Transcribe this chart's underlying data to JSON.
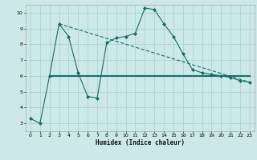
{
  "xlabel": "Humidex (Indice chaleur)",
  "bg_color": "#cce8e8",
  "grid_color": "#aad4d4",
  "line1_x": [
    0,
    1,
    2,
    3,
    4,
    5,
    6,
    7,
    8,
    9,
    10,
    11,
    12,
    13,
    14,
    15,
    16,
    17,
    18,
    19,
    20,
    21,
    22,
    23
  ],
  "line1_y": [
    3.3,
    3.0,
    6.0,
    9.3,
    8.5,
    6.2,
    4.7,
    4.6,
    8.1,
    8.4,
    8.5,
    8.7,
    10.3,
    10.2,
    9.3,
    8.5,
    7.4,
    6.4,
    6.2,
    6.1,
    6.0,
    5.9,
    5.7,
    5.6
  ],
  "line2_x": [
    2,
    23
  ],
  "line2_y": [
    6.0,
    6.0
  ],
  "line3_x": [
    3,
    23
  ],
  "line3_y": [
    9.3,
    5.6
  ],
  "line_color": "#1a6b6b",
  "xlim": [
    -0.5,
    23.5
  ],
  "ylim": [
    2.5,
    10.5
  ],
  "yticks": [
    3,
    4,
    5,
    6,
    7,
    8,
    9,
    10
  ],
  "xticks": [
    0,
    1,
    2,
    3,
    4,
    5,
    6,
    7,
    8,
    9,
    10,
    11,
    12,
    13,
    14,
    15,
    16,
    17,
    18,
    19,
    20,
    21,
    22,
    23
  ]
}
